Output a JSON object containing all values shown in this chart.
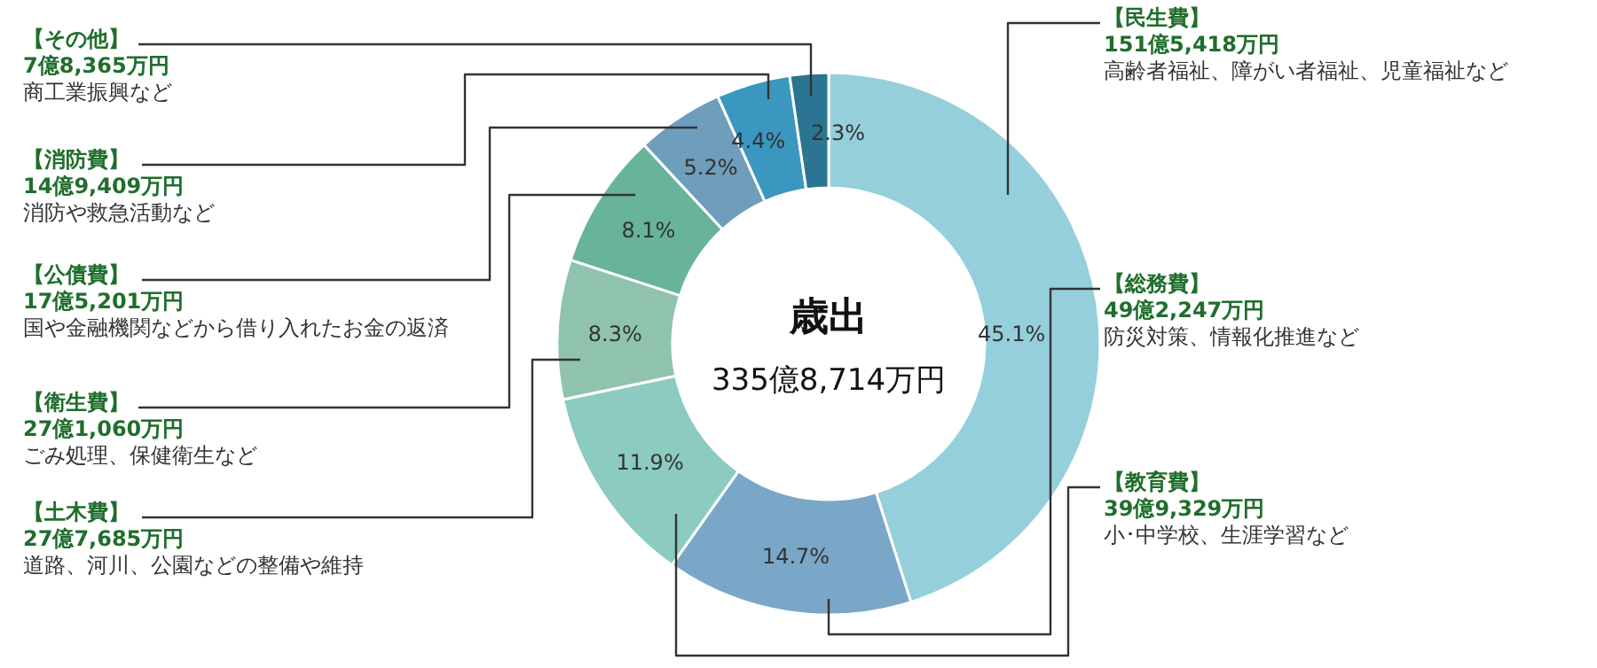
{
  "chart_data": {
    "type": "donut",
    "title": "歳出",
    "subtitle": "335億8,714万円",
    "categories": [
      "【民生費】",
      "【総務費】",
      "【教育費】",
      "【土木費】",
      "【衛生費】",
      "【公債費】",
      "【消防費】",
      "【その他】"
    ],
    "values": [
      45.1,
      14.7,
      11.9,
      8.3,
      8.1,
      5.2,
      4.4,
      2.3
    ],
    "value_labels": [
      "45.1%",
      "14.7%",
      "11.9%",
      "8.3%",
      "8.1%",
      "5.2%",
      "4.4%",
      "2.3%"
    ],
    "colors": [
      "#96cfdc",
      "#7aa7c7",
      "#8ccbbf",
      "#8fc3ae",
      "#67b39b",
      "#6f9dbc",
      "#3a97c0",
      "#2b7592"
    ],
    "annotations": [
      "151億5,418万円",
      "高齢者福祉、障がい者福祉、児童福祉など",
      "49億2,247万円",
      "防災対策、情報化推進など",
      "39億9,329万円",
      "小･中学校、生涯学習など",
      "27億7,685万円",
      "道路、河川、公園などの整備や維持",
      "27億1,060万円",
      "ごみ処理、保健衛生など",
      "17億5,201万円",
      "国や金融機関などから借り入れたお金の返済",
      "14億9,409万円",
      "消防や救急活動など",
      "7億8,365万円",
      "商工業振興など"
    ]
  }
}
